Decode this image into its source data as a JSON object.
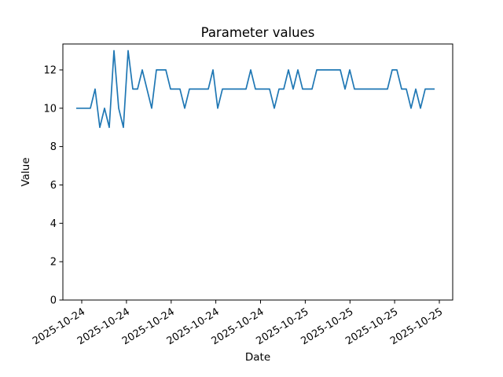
{
  "chart_data": {
    "type": "line",
    "title": "Parameter values",
    "xlabel": "Date",
    "ylabel": "Value",
    "grid": false,
    "legend_position": "none",
    "line_color": "#1f77b4",
    "axis_color": "#000000",
    "background_color": "#ffffff",
    "ylim": [
      0,
      13.35
    ],
    "y_ticks": [
      0,
      2,
      4,
      6,
      8,
      10,
      12
    ],
    "x_tick_labels": [
      "2025-10-24",
      "2025-10-24",
      "2025-10-24",
      "2025-10-24",
      "2025-10-24",
      "2025-10-25",
      "2025-10-25",
      "2025-10-25",
      "2025-10-25"
    ],
    "values": [
      10,
      10,
      10,
      10,
      11,
      9,
      10,
      9,
      13,
      10,
      9,
      13,
      11,
      11,
      12,
      11,
      10,
      12,
      12,
      12,
      11,
      11,
      11,
      10,
      11,
      11,
      11,
      11,
      11,
      12,
      10,
      11,
      11,
      11,
      11,
      11,
      11,
      12,
      11,
      11,
      11,
      11,
      10,
      11,
      11,
      12,
      11,
      12,
      11,
      11,
      11,
      12,
      12,
      12,
      12,
      12,
      12,
      11,
      12,
      11,
      11,
      11,
      11,
      11,
      11,
      11,
      11,
      12,
      12,
      11,
      11,
      10,
      11,
      10,
      11,
      11,
      11
    ]
  }
}
